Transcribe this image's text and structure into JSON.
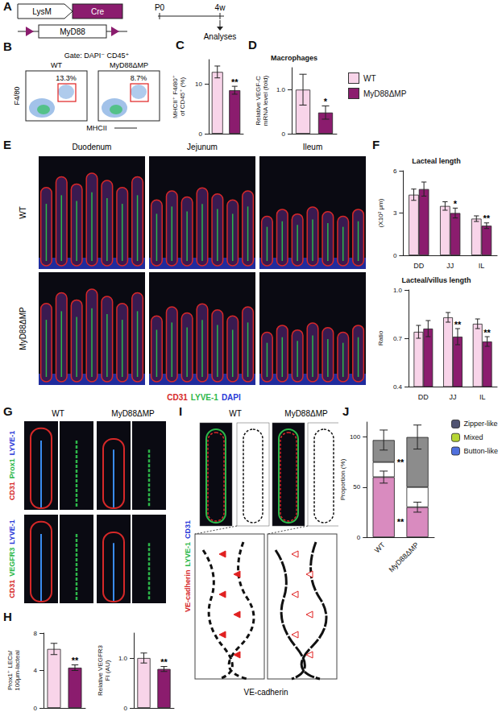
{
  "figure": {
    "panel_labels": [
      "A",
      "B",
      "C",
      "D",
      "E",
      "F",
      "G",
      "H",
      "I",
      "J"
    ],
    "A": {
      "construct": [
        "LysM",
        "Cre"
      ],
      "flox": "MyD88",
      "timeline": [
        "P0",
        "4w"
      ],
      "readout": "Analyses"
    },
    "B": {
      "gate": "Gate: DAPI⁻ CD45⁺",
      "groups": [
        {
          "name": "WT",
          "percent": "13.3%"
        },
        {
          "name": "MyD88ΔMP",
          "percent": "8.7%"
        }
      ],
      "x_label": "MHCII",
      "y_label": "F4/80"
    },
    "legend": [
      {
        "name": "WT",
        "color": "#f8d4e9"
      },
      {
        "name": "MyD88ΔMP",
        "color": "#8b1c6e"
      }
    ],
    "E": {
      "columns": [
        "Duodenum",
        "Jejunum",
        "Ileum"
      ],
      "rows": [
        "WT",
        "MyD88ΔMP"
      ],
      "stain": [
        {
          "text": "CD31",
          "color": "#d62828"
        },
        {
          "text": "LYVE-1",
          "color": "#2db84a"
        },
        {
          "text": "DAPI",
          "color": "#2a3ad8"
        }
      ]
    },
    "G": {
      "columns": [
        "WT",
        "MyD88ΔMP"
      ],
      "rows": [
        [
          {
            "text": "CD31",
            "color": "#d62828"
          },
          {
            "text": "Prox1",
            "color": "#2db84a"
          },
          {
            "text": "LYVE-1",
            "color": "#2a3ad8"
          }
        ],
        [
          {
            "text": "CD31",
            "color": "#d62828"
          },
          {
            "text": "VEGFR3",
            "color": "#2db84a"
          },
          {
            "text": "LYVE-1",
            "color": "#2a3ad8"
          }
        ]
      ]
    },
    "I": {
      "columns": [
        "WT",
        "MyD88ΔMP"
      ],
      "stain": [
        {
          "text": "VE-cadherin",
          "color": "#d62828"
        },
        {
          "text": "LYVE-1",
          "color": "#2db84a"
        },
        {
          "text": "CD31",
          "color": "#2a3ad8"
        }
      ],
      "bottom_label": "VE-cadherin"
    }
  },
  "chart_data": [
    {
      "type": "bar",
      "categories": [
        "WT",
        "MyD88ΔMP"
      ],
      "values": [
        12.5,
        8.8
      ],
      "errors": [
        1.2,
        0.8
      ],
      "significance": [
        "",
        "**"
      ],
      "colors": [
        "#f8d4e9",
        "#8b1c6e"
      ],
      "y_label": "MHCII⁺ F4/80⁺\nof CD45⁺ (%)",
      "ylim": [
        0,
        15
      ],
      "yticks": [
        0,
        10
      ],
      "tick_labels": "y",
      "grid": false
    },
    {
      "type": "bar",
      "title": "Macrophages",
      "categories": [
        "WT",
        "MyD88ΔMP"
      ],
      "values": [
        1.0,
        0.48
      ],
      "errors": [
        0.35,
        0.15
      ],
      "significance": [
        "",
        "*"
      ],
      "colors": [
        "#f8d4e9",
        "#8b1c6e"
      ],
      "y_label": "Relative VEGF-C\nmRNA level (fold)",
      "ylim": [
        0,
        1.5
      ],
      "yticks": [
        0,
        {
          "value": 1,
          "label": "1.0"
        }
      ],
      "tick_labels": "y",
      "grid": false
    },
    {
      "type": "bar",
      "title": "Lacteal length",
      "categories": [
        "DD",
        "JJ",
        "IL"
      ],
      "series": [
        {
          "name": "WT",
          "color": "#f8d4e9",
          "values": [
            4.3,
            3.5,
            2.6
          ],
          "errors": [
            0.4,
            0.3,
            0.2
          ],
          "significance": [
            "",
            "",
            ""
          ]
        },
        {
          "name": "MyD88ΔMP",
          "color": "#8b1c6e",
          "values": [
            4.7,
            3.0,
            2.1
          ],
          "errors": [
            0.5,
            0.35,
            0.2
          ],
          "significance": [
            "",
            "*",
            "**"
          ]
        }
      ],
      "y_label": "(X10² μm)",
      "ylim": [
        0,
        6
      ],
      "yticks": [
        0,
        3,
        6
      ],
      "grid": false
    },
    {
      "type": "bar",
      "title": "Lacteal/villus length",
      "categories": [
        "DD",
        "JJ",
        "IL"
      ],
      "series": [
        {
          "name": "WT",
          "color": "#f8d4e9",
          "values": [
            0.74,
            0.83,
            0.79
          ],
          "errors": [
            0.04,
            0.03,
            0.03
          ],
          "significance": [
            "",
            "",
            ""
          ]
        },
        {
          "name": "MyD88ΔMP",
          "color": "#8b1c6e",
          "values": [
            0.76,
            0.71,
            0.68
          ],
          "errors": [
            0.05,
            0.05,
            0.03
          ],
          "significance": [
            "",
            "**",
            "**"
          ]
        }
      ],
      "y_label": "Ratio",
      "ylim": [
        0.4,
        1.0
      ],
      "yticks": [
        0.4,
        0.7,
        {
          "value": 1,
          "label": "1.0"
        }
      ],
      "grid": false
    },
    {
      "type": "bar",
      "categories": [
        "WT",
        "MyD88ΔMP"
      ],
      "values": [
        6.3,
        4.3
      ],
      "errors": [
        0.6,
        0.3
      ],
      "significance": [
        "",
        "**"
      ],
      "colors": [
        "#f8d4e9",
        "#8b1c6e"
      ],
      "y_label": "Prox1⁺ LECs/\n100μm-lacteal",
      "ylim": [
        0,
        8
      ],
      "yticks": [
        0,
        4,
        8
      ],
      "tick_labels": "y",
      "grid": false
    },
    {
      "type": "bar",
      "categories": [
        "WT",
        "MyD88ΔMP"
      ],
      "values": [
        1.0,
        0.78
      ],
      "errors": [
        0.1,
        0.05
      ],
      "significance": [
        "",
        "**"
      ],
      "colors": [
        "#f8d4e9",
        "#8b1c6e"
      ],
      "y_label": "Relative VEGFR3\nFI (AU)",
      "ylim": [
        0,
        1.5
      ],
      "yticks": [
        0,
        {
          "value": 1,
          "label": "1.0"
        }
      ],
      "tick_labels": "y",
      "grid": false
    },
    {
      "type": "bar",
      "stacked": true,
      "legend": "right",
      "categories": [
        "WT",
        "MyD88ΔMP"
      ],
      "series": [
        {
          "name": "Button-like",
          "color": "#d98bbf",
          "values": [
            60,
            30
          ],
          "errors": [
            6,
            5
          ],
          "significance": [
            "",
            "**"
          ]
        },
        {
          "name": "Mixed",
          "color": "#ffffff",
          "values": [
            15,
            20
          ]
        },
        {
          "name": "Zipper-like",
          "color": "#8c8c8c",
          "values": [
            22,
            50
          ],
          "errors": [
            10,
            12
          ],
          "significance": [
            "",
            "**"
          ]
        }
      ],
      "y_label": "Proportion (%)",
      "ylim": [
        0,
        115
      ],
      "yticks": [
        0,
        50,
        100
      ],
      "grid": false
    }
  ]
}
